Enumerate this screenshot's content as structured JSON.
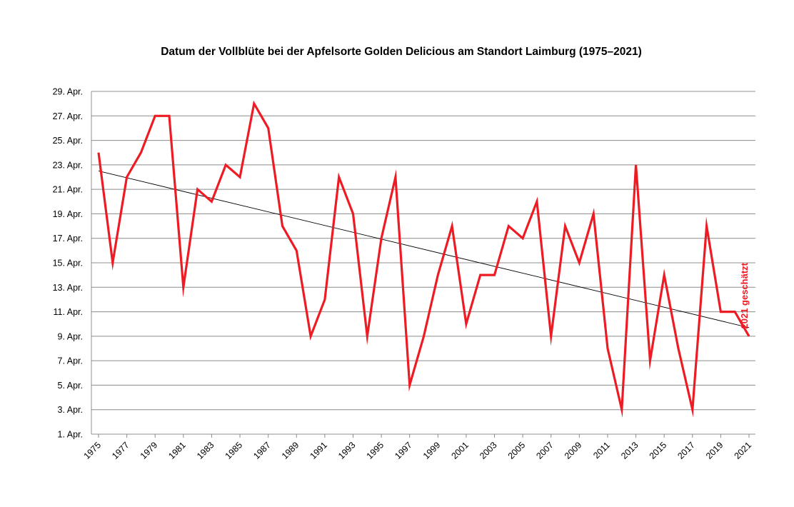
{
  "chart_data": {
    "type": "line",
    "title": "Datum der Vollblüte bei der Apfelsorte Golden Delicious am Standort Laimburg (1975–2021)",
    "xlabel": "",
    "ylabel": "",
    "x": [
      1975,
      1976,
      1977,
      1978,
      1979,
      1980,
      1981,
      1982,
      1983,
      1984,
      1985,
      1986,
      1987,
      1988,
      1989,
      1990,
      1991,
      1992,
      1993,
      1994,
      1995,
      1996,
      1997,
      1998,
      1999,
      2000,
      2001,
      2002,
      2003,
      2004,
      2005,
      2006,
      2007,
      2008,
      2009,
      2010,
      2011,
      2012,
      2013,
      2014,
      2015,
      2016,
      2017,
      2018,
      2019,
      2020,
      2021
    ],
    "x_tick_labels": [
      "1975",
      "1977",
      "1979",
      "1981",
      "1983",
      "1985",
      "1987",
      "1989",
      "1991",
      "1993",
      "1995",
      "1997",
      "1999",
      "2001",
      "2003",
      "2005",
      "2007",
      "2009",
      "2011",
      "2013",
      "2015",
      "2017",
      "2019",
      "2021"
    ],
    "y_tick_labels": [
      "1. Apr.",
      "3. Apr.",
      "5. Apr.",
      "7. Apr.",
      "9. Apr.",
      "11. Apr.",
      "13. Apr.",
      "15. Apr.",
      "17. Apr.",
      "19. Apr.",
      "21. Apr.",
      "23. Apr.",
      "25. Apr.",
      "27. Apr.",
      "29. Apr."
    ],
    "ylim": [
      1,
      29
    ],
    "y_unit": "day of April",
    "grid": true,
    "series": [
      {
        "values": [
          24,
          15,
          22,
          24,
          27,
          27,
          13,
          21,
          20,
          23,
          22,
          28,
          26,
          18,
          16,
          9,
          12,
          22,
          19,
          9,
          17,
          22,
          5,
          9,
          14,
          18,
          10,
          14,
          14,
          18,
          17,
          20,
          9,
          18,
          15,
          19,
          8,
          3,
          23,
          7,
          14,
          8,
          3,
          18,
          11,
          11,
          9
        ],
        "color": "#ed1c24"
      }
    ],
    "trendline": {
      "type": "linear",
      "start": [
        1975,
        22.5
      ],
      "end": [
        2021,
        9.7
      ],
      "color": "#000000"
    },
    "annotations": [
      {
        "text": "2021 geschätzt",
        "x": 2021,
        "y": 15,
        "color": "#ed1c24",
        "rotation": -90
      }
    ]
  }
}
